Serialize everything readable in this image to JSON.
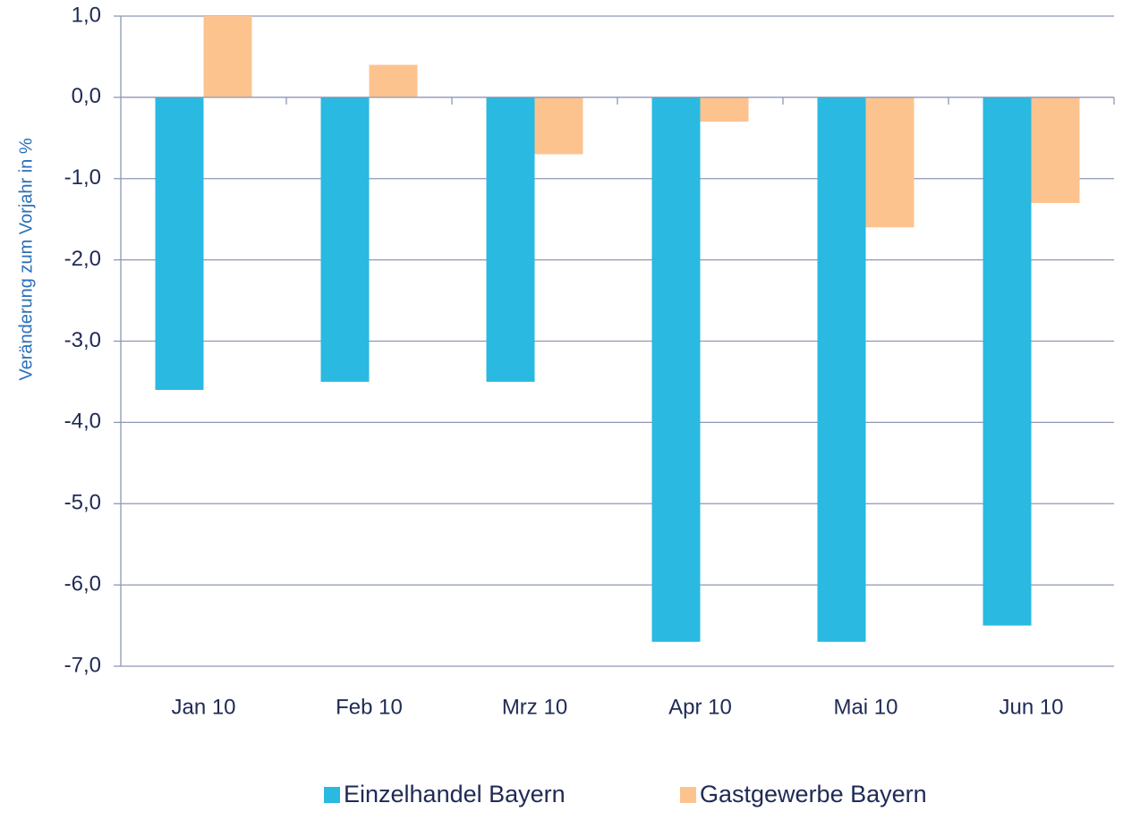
{
  "chart_data": {
    "type": "bar",
    "y_label": "Veränderung zum Vorjahr in %",
    "categories": [
      "Jan 10",
      "Feb 10",
      "Mrz 10",
      "Apr 10",
      "Mai 10",
      "Jun 10"
    ],
    "series": [
      {
        "name": "Einzelhandel Bayern",
        "color": "#29b9e1",
        "values": [
          -3.6,
          -3.5,
          -3.5,
          -6.7,
          -6.7,
          -6.5
        ]
      },
      {
        "name": "Gastgewerbe Bayern",
        "color": "#fdc38f",
        "values": [
          1.0,
          0.4,
          -0.7,
          -0.3,
          -1.6,
          -1.3
        ]
      }
    ],
    "ylim": [
      -7,
      1
    ],
    "yticks": [
      {
        "value": 1,
        "label": "1,0"
      },
      {
        "value": 0,
        "label": "0,0"
      },
      {
        "value": -1,
        "label": "-1,0"
      },
      {
        "value": -2,
        "label": "-2,0"
      },
      {
        "value": -3,
        "label": "-3,0"
      },
      {
        "value": -4,
        "label": "-4,0"
      },
      {
        "value": -5,
        "label": "-5,0"
      },
      {
        "value": -6,
        "label": "-6,0"
      },
      {
        "value": -7,
        "label": "-7,0"
      }
    ],
    "grid": true,
    "legend": "bottom"
  }
}
